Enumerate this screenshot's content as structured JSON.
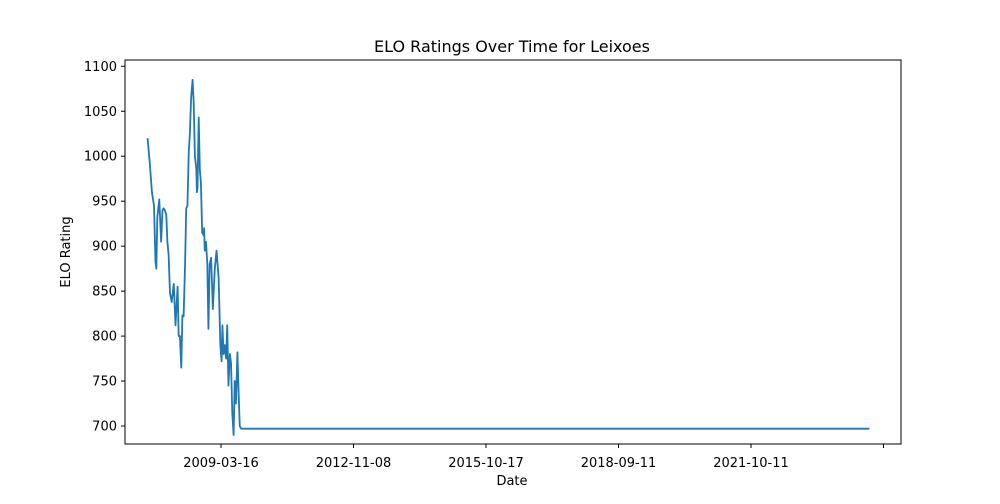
{
  "chart_data": {
    "type": "line",
    "title": "ELO Ratings Over Time for Leixoes",
    "xlabel": "Date",
    "ylabel": "ELO Rating",
    "x_tick_labels": [
      "2009-03-16",
      "2012-11-08",
      "2015-10-17",
      "2018-09-11",
      "2021-10-11",
      ""
    ],
    "y_ticks": [
      700,
      750,
      800,
      850,
      900,
      950,
      1000,
      1050,
      1100
    ],
    "ylim": [
      680,
      1107
    ],
    "xlim": [
      "2007-07-01",
      "2024-10-15"
    ],
    "grid": false,
    "color": "#1f77b4",
    "series": [
      {
        "dates": [
          "2008-01-01",
          "2008-01-20",
          "2008-02-05",
          "2008-02-22",
          "2008-03-05",
          "2008-03-12",
          "2008-03-20",
          "2008-04-05",
          "2008-04-20",
          "2008-05-01",
          "2008-05-10",
          "2008-05-20",
          "2008-06-01",
          "2008-06-10",
          "2008-06-20",
          "2008-07-01",
          "2008-07-15",
          "2008-08-01",
          "2008-08-15",
          "2008-09-01",
          "2008-09-10",
          "2008-09-20",
          "2008-10-01",
          "2008-10-10",
          "2008-10-20",
          "2008-11-01",
          "2008-11-10",
          "2008-11-20",
          "2008-12-01",
          "2008-12-10",
          "2008-12-20",
          "2009-01-01",
          "2009-01-10",
          "2009-01-20",
          "2009-02-01",
          "2009-02-05",
          "2009-02-10",
          "2009-02-20",
          "2009-03-01",
          "2009-03-10",
          "2009-03-20",
          "2009-04-01",
          "2009-04-05",
          "2009-04-10",
          "2009-04-20",
          "2009-05-01",
          "2009-05-10",
          "2009-05-20",
          "2009-06-01",
          "2009-06-15",
          "2009-07-01",
          "2009-07-15",
          "2009-08-01",
          "2009-08-15",
          "2009-08-25",
          "2009-09-01",
          "2009-09-10",
          "2009-09-20",
          "2009-10-01",
          "2009-10-10",
          "2009-10-20",
          "2009-11-01",
          "2009-11-10",
          "2009-11-20",
          "2009-12-01",
          "2009-12-10",
          "2009-12-20",
          "2010-01-01",
          "2010-01-10",
          "2010-01-20",
          "2010-02-01",
          "2010-02-10",
          "2010-02-20",
          "2010-03-01",
          "2010-03-10",
          "2010-03-20",
          "2010-04-01",
          "2010-04-10",
          "2010-04-20",
          "2010-05-01",
          "2010-05-10",
          "2010-05-20",
          "2010-06-01",
          "2010-06-10",
          "2010-06-20",
          "2010-07-01",
          "2010-07-10",
          "2010-07-20",
          "2010-08-01",
          "2010-08-10",
          "2010-08-20",
          "2010-09-01",
          "2010-09-10",
          "2010-09-20",
          "2010-10-01",
          "2010-10-10",
          "2010-10-20",
          "2010-11-01",
          "2010-11-10",
          "2010-11-20",
          "2010-12-01",
          "2010-12-10",
          "2010-12-20",
          "2011-01-01",
          "2011-01-10",
          "2011-01-20",
          "2011-02-01",
          "2011-02-10",
          "2011-02-20",
          "2011-03-01",
          "2011-03-10",
          "2011-03-20",
          "2011-04-01",
          "2011-04-10",
          "2011-04-20",
          "2011-05-01",
          "2011-05-10",
          "2011-05-20",
          "2011-06-01",
          "2011-06-10",
          "2011-06-20",
          "2011-07-01",
          "2011-07-10",
          "2011-07-20",
          "2011-08-01",
          "2024-02-01"
        ],
        "values": [
          1020,
          990,
          960,
          945,
          883,
          875,
          932,
          952,
          905,
          940,
          942,
          940,
          935,
          905,
          890,
          848,
          838,
          858,
          812,
          855,
          800,
          800,
          765,
          823,
          822,
          880,
          942,
          945,
          1005,
          1025,
          1065,
          1085,
          1060,
          1000,
          985,
          960,
          965,
          1043,
          985,
          970,
          915,
          912,
          920,
          895,
          905,
          880,
          808,
          880,
          887,
          830,
          875,
          895,
          865,
          790,
          772,
          812,
          780,
          790,
          775,
          812,
          745,
          780,
          770,
          715,
          690,
          750,
          725,
          782,
          740,
          700,
          697,
          697,
          697,
          697,
          697,
          697,
          697,
          697,
          697,
          697,
          697,
          697,
          697,
          697,
          697,
          697,
          697,
          697,
          697,
          697,
          697,
          697,
          697,
          697,
          697,
          697,
          697,
          697,
          697,
          697,
          697,
          697,
          697,
          697,
          697,
          697,
          697,
          697,
          697,
          697,
          697,
          697,
          697,
          697,
          697,
          697,
          697,
          697,
          697,
          697,
          697,
          697,
          697,
          697,
          697,
          697
        ]
      }
    ]
  }
}
